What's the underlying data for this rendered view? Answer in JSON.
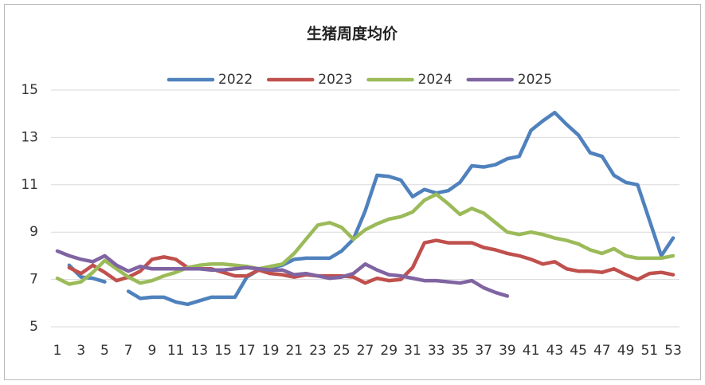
{
  "chart_data": {
    "type": "line",
    "title": "生猪周度均价",
    "x": [
      1,
      2,
      3,
      4,
      5,
      6,
      7,
      8,
      9,
      10,
      11,
      12,
      13,
      14,
      15,
      16,
      17,
      18,
      19,
      20,
      21,
      22,
      23,
      24,
      25,
      26,
      27,
      28,
      29,
      30,
      31,
      32,
      33,
      34,
      35,
      36,
      37,
      38,
      39,
      40,
      41,
      42,
      43,
      44,
      45,
      46,
      47,
      48,
      49,
      50,
      51,
      52,
      53
    ],
    "xlim": [
      1,
      53
    ],
    "xticks": [
      1,
      3,
      5,
      7,
      9,
      11,
      13,
      15,
      17,
      19,
      21,
      23,
      25,
      27,
      29,
      31,
      33,
      35,
      37,
      39,
      41,
      43,
      45,
      47,
      49,
      51,
      53
    ],
    "ylim": [
      5,
      15
    ],
    "yticks": [
      5,
      7,
      9,
      11,
      13,
      15
    ],
    "grid": true,
    "legend": "top",
    "series": [
      {
        "name": "2022",
        "color": "#4f81bd",
        "values": [
          null,
          7.6,
          7.1,
          7.05,
          6.9,
          null,
          6.5,
          6.2,
          6.25,
          6.25,
          6.05,
          5.95,
          6.1,
          6.25,
          6.25,
          6.25,
          7.1,
          7.4,
          7.5,
          7.6,
          7.85,
          7.9,
          7.9,
          7.9,
          8.2,
          8.7,
          9.9,
          11.4,
          11.35,
          11.2,
          10.5,
          10.8,
          10.65,
          10.75,
          11.1,
          11.8,
          11.75,
          11.85,
          12.1,
          12.2,
          13.3,
          13.7,
          14.05,
          13.55,
          13.1,
          12.35,
          12.2,
          11.4,
          11.1,
          11.0,
          9.5,
          8.0,
          8.75
        ]
      },
      {
        "name": "2023",
        "color": "#c0504d",
        "values": [
          null,
          7.5,
          7.25,
          7.6,
          7.3,
          6.95,
          7.1,
          7.35,
          7.85,
          7.95,
          7.85,
          7.5,
          7.45,
          7.45,
          7.3,
          7.15,
          7.15,
          7.4,
          7.25,
          7.2,
          7.1,
          7.2,
          7.15,
          7.15,
          7.15,
          7.1,
          6.85,
          7.05,
          6.95,
          7.0,
          7.5,
          8.55,
          8.65,
          8.55,
          8.55,
          8.55,
          8.35,
          8.25,
          8.1,
          8.0,
          7.85,
          7.65,
          7.75,
          7.45,
          7.35,
          7.35,
          7.3,
          7.45,
          7.2,
          7.0,
          7.25,
          7.3,
          7.2
        ]
      },
      {
        "name": "2024",
        "color": "#9bbb59",
        "values": [
          7.05,
          6.8,
          6.9,
          7.3,
          7.8,
          7.45,
          7.1,
          6.85,
          6.95,
          7.15,
          7.3,
          7.5,
          7.6,
          7.65,
          7.65,
          7.6,
          7.55,
          7.45,
          7.55,
          7.65,
          8.1,
          8.7,
          9.3,
          9.4,
          9.2,
          8.7,
          9.1,
          9.35,
          9.55,
          9.65,
          9.85,
          10.35,
          10.6,
          10.2,
          9.75,
          10.0,
          9.8,
          9.4,
          9.0,
          8.9,
          9.0,
          8.9,
          8.75,
          8.65,
          8.5,
          8.25,
          8.1,
          8.3,
          8.0,
          7.9,
          7.9,
          7.9,
          8.0
        ]
      },
      {
        "name": "2025",
        "color": "#8064a2",
        "values": [
          8.2,
          8.0,
          7.85,
          7.75,
          8.0,
          7.6,
          7.35,
          7.55,
          7.45,
          7.45,
          7.45,
          7.45,
          7.45,
          7.4,
          7.4,
          7.45,
          7.5,
          7.45,
          7.4,
          7.4,
          7.2,
          7.25,
          7.15,
          7.05,
          7.1,
          7.25,
          7.65,
          7.4,
          7.2,
          7.15,
          7.05,
          6.95,
          6.95,
          6.9,
          6.85,
          6.95,
          6.65,
          6.45,
          6.3,
          null,
          null,
          null,
          null,
          null,
          null,
          null,
          null,
          null,
          null,
          null,
          null,
          null,
          null
        ]
      }
    ]
  }
}
